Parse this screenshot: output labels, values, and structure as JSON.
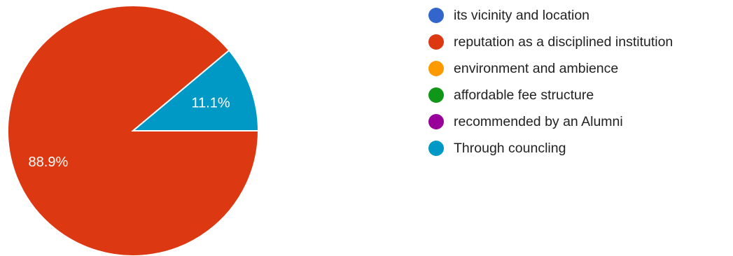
{
  "chart_data": {
    "type": "pie",
    "slices": [
      {
        "label": "its vicinity and location",
        "value": 0,
        "color": "#3366cc"
      },
      {
        "label": "reputation as a disciplined institution",
        "value": 88.9,
        "display": "88.9%",
        "color": "#dc3912"
      },
      {
        "label": "environment and ambience",
        "value": 0,
        "color": "#ff9900"
      },
      {
        "label": "affordable fee structure",
        "value": 0,
        "color": "#109618"
      },
      {
        "label": "recommended by an Alumni",
        "value": 0,
        "color": "#990099"
      },
      {
        "label": "Through councling",
        "value": 11.1,
        "display": "11.1%",
        "color": "#0099c6"
      }
    ],
    "legend_position": "right"
  }
}
